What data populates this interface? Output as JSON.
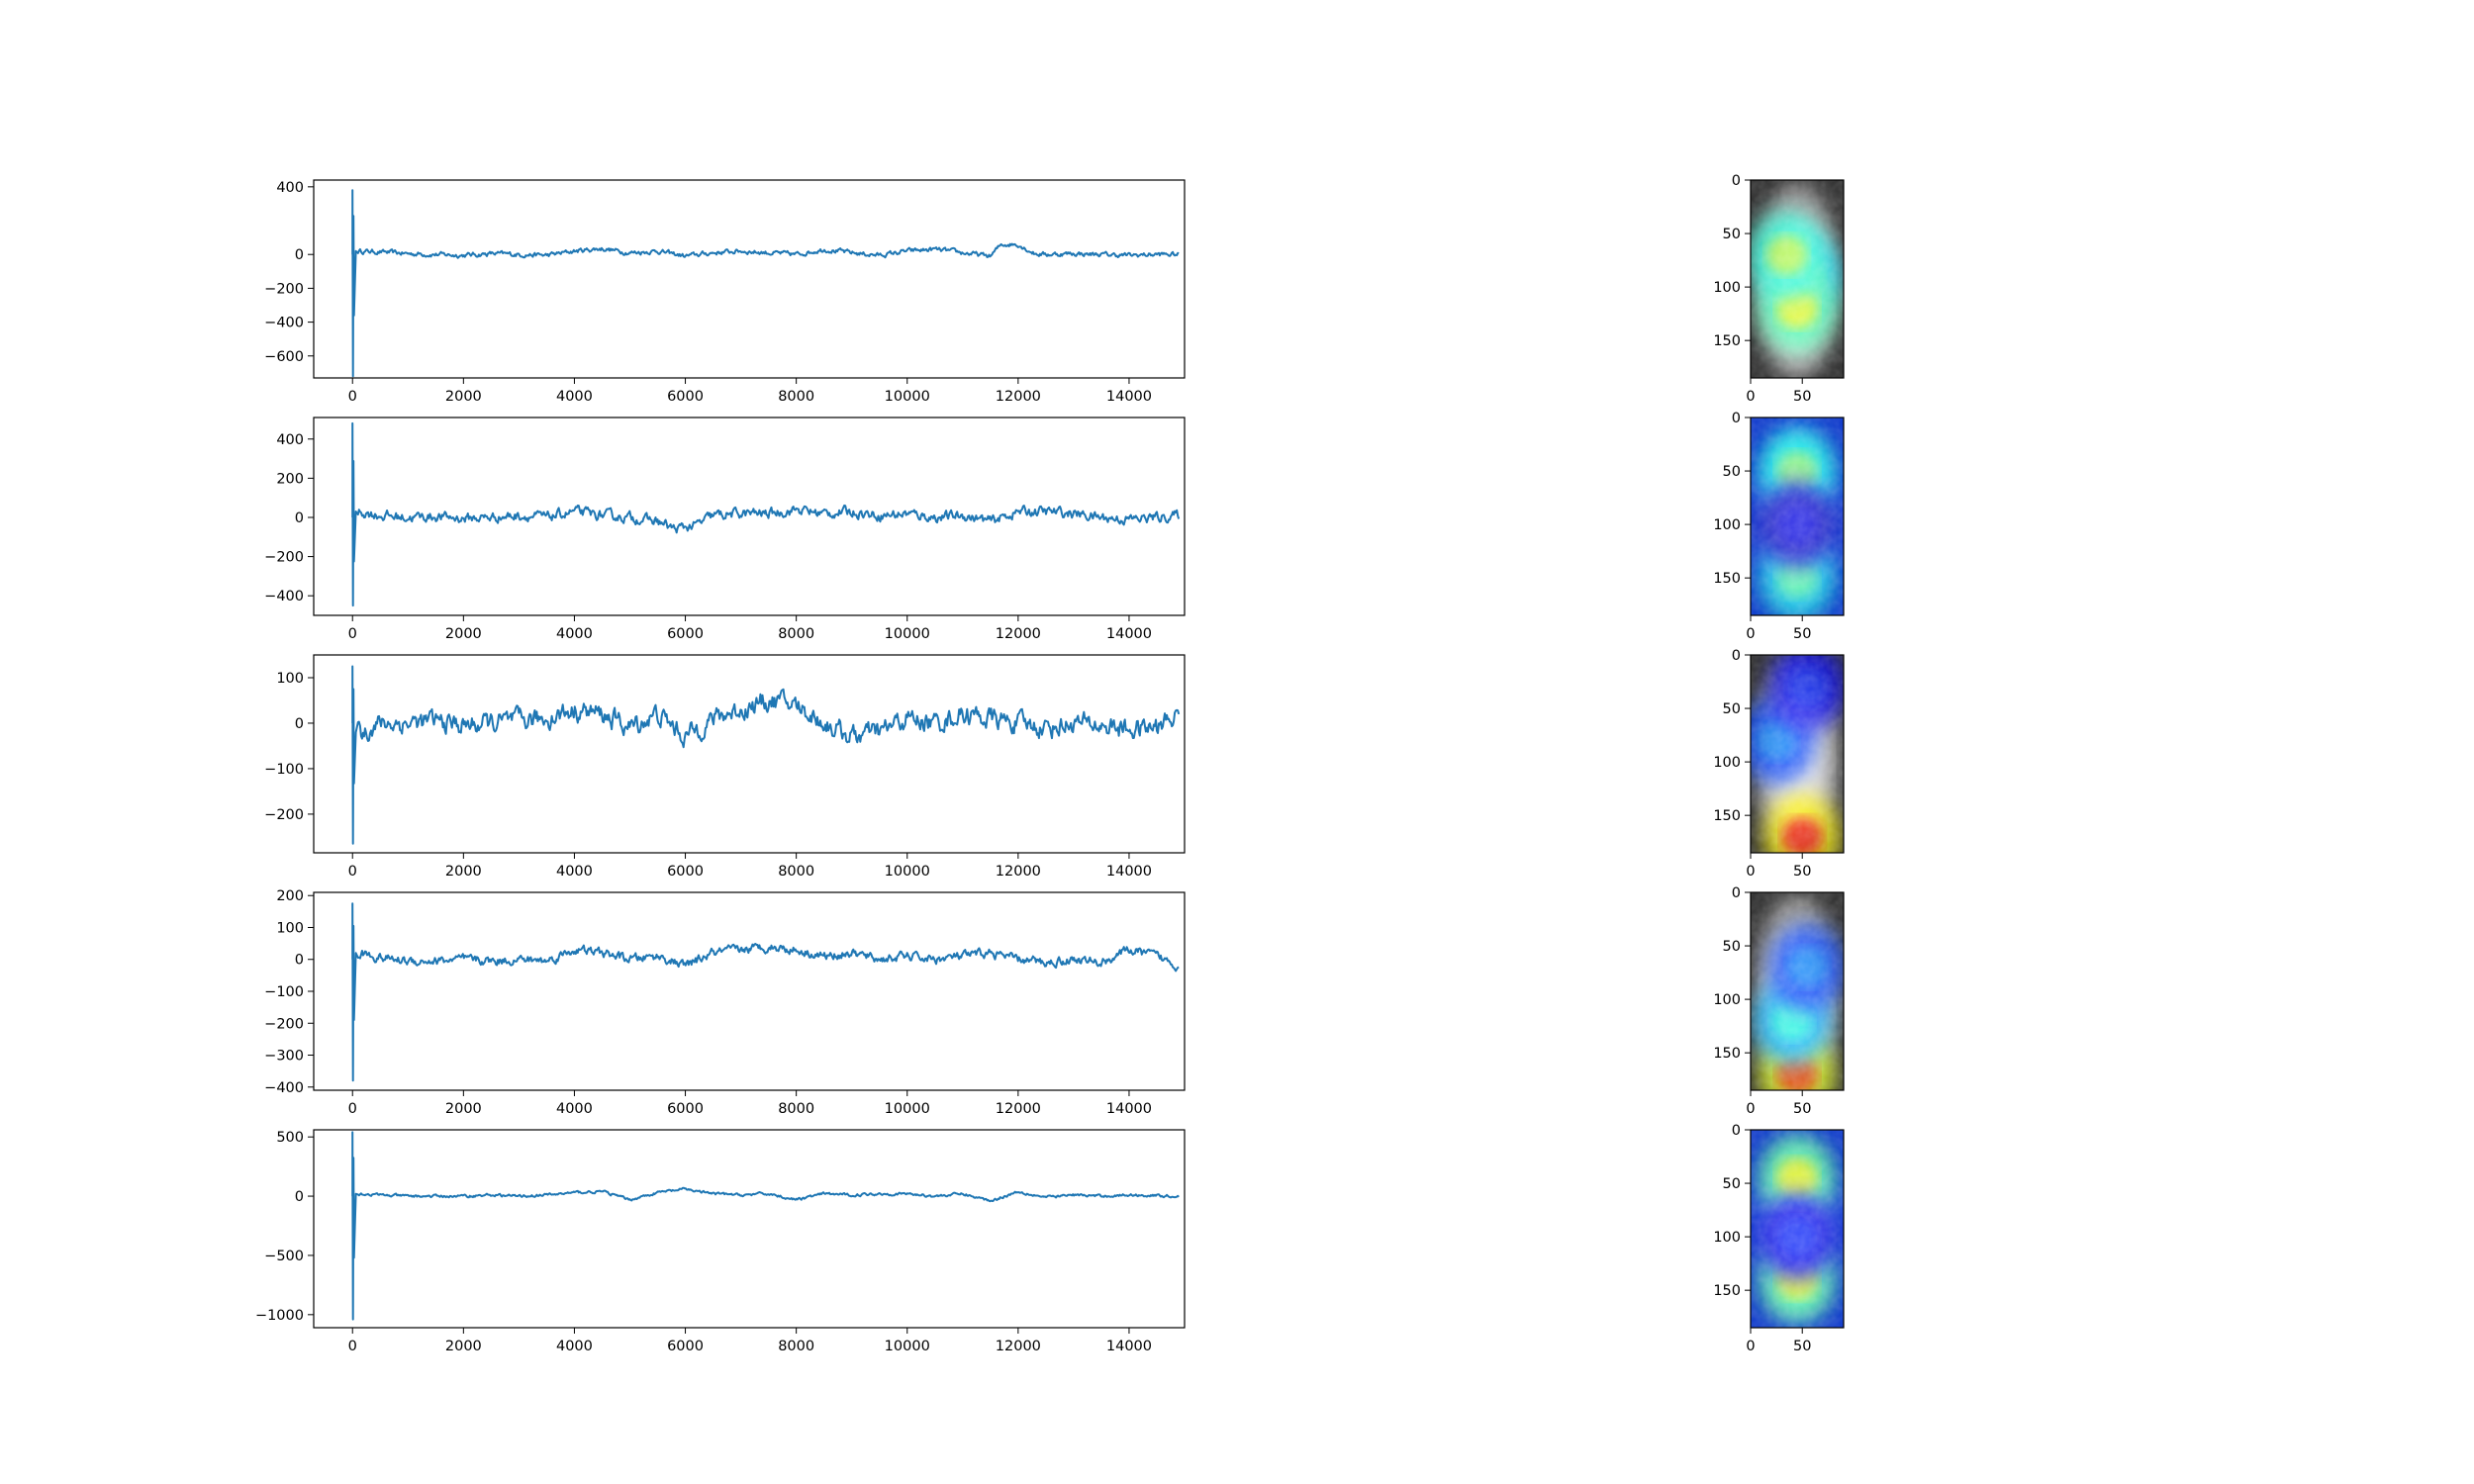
{
  "chart_data": [
    {
      "type": "line",
      "title": "",
      "xlabel": "",
      "ylabel": "",
      "xlim": [
        -700,
        15000
      ],
      "ylim": [
        -730,
        440
      ],
      "xticks": [
        0,
        2000,
        4000,
        6000,
        8000,
        10000,
        12000,
        14000
      ],
      "yticks": [
        400,
        200,
        0,
        -200,
        -400,
        -600
      ],
      "yticklabels": [
        "400",
        "0",
        "−200",
        "−400",
        "−600"
      ],
      "ytick_values": [
        400,
        0,
        -200,
        -400,
        -600
      ],
      "series": [
        {
          "color": "#1f77b4",
          "spike": {
            "x": 0,
            "min": -720,
            "max": 380
          },
          "noise_amplitude": 22,
          "x": [
            0,
            120,
            500,
            1000,
            1500,
            2000,
            2500,
            3000,
            3500,
            4000,
            4500,
            5000,
            5500,
            6000,
            6500,
            7000,
            7500,
            8000,
            8500,
            9000,
            9500,
            10000,
            10500,
            11000,
            11500,
            11700,
            12000,
            12300,
            12500,
            13000,
            13500,
            14000,
            14500,
            14900
          ],
          "y": [
            0,
            20,
            15,
            5,
            0,
            -5,
            5,
            0,
            -5,
            20,
            35,
            10,
            20,
            -10,
            10,
            20,
            10,
            0,
            30,
            10,
            -5,
            20,
            30,
            10,
            -10,
            60,
            60,
            5,
            0,
            5,
            0,
            -5,
            0,
            0
          ]
        }
      ]
    },
    {
      "type": "line",
      "title": "",
      "xlabel": "",
      "ylabel": "",
      "xlim": [
        -700,
        15000
      ],
      "ylim": [
        -500,
        510
      ],
      "xticks": [
        0,
        2000,
        4000,
        6000,
        8000,
        10000,
        12000,
        14000
      ],
      "yticks": [
        400,
        200,
        0,
        -200,
        -400
      ],
      "yticklabels": [
        "400",
        "200",
        "0",
        "−200",
        "−400"
      ],
      "series": [
        {
          "color": "#1f77b4",
          "spike": {
            "x": 0,
            "min": -450,
            "max": 480
          },
          "noise_amplitude": 40,
          "x": [
            0,
            120,
            500,
            1000,
            1500,
            2000,
            2500,
            3000,
            3500,
            4000,
            4500,
            5000,
            5500,
            5800,
            6200,
            6500,
            7000,
            7500,
            8000,
            8500,
            9000,
            9500,
            10000,
            10500,
            11000,
            11500,
            12000,
            12500,
            13000,
            13500,
            14000,
            14500,
            14900
          ],
          "y": [
            0,
            30,
            10,
            0,
            5,
            -5,
            0,
            10,
            0,
            30,
            10,
            0,
            -20,
            -60,
            -40,
            10,
            20,
            20,
            40,
            20,
            30,
            10,
            20,
            0,
            10,
            -20,
            30,
            30,
            20,
            0,
            -10,
            0,
            10
          ]
        }
      ]
    },
    {
      "type": "line",
      "title": "",
      "xlabel": "",
      "ylabel": "",
      "xlim": [
        -700,
        15000
      ],
      "ylim": [
        -285,
        150
      ],
      "xticks": [
        0,
        2000,
        4000,
        6000,
        8000,
        10000,
        12000,
        14000
      ],
      "yticks": [
        100,
        0,
        -100,
        -200
      ],
      "yticklabels": [
        "100",
        "0",
        "−100",
        "−200"
      ],
      "series": [
        {
          "color": "#1f77b4",
          "spike": {
            "x": 0,
            "min": -265,
            "max": 125
          },
          "noise_amplitude": 35,
          "x": [
            0,
            150,
            500,
            1000,
            1500,
            2000,
            2500,
            3000,
            3500,
            4000,
            4500,
            5000,
            5500,
            6000,
            6500,
            7000,
            7500,
            8000,
            8500,
            9000,
            9500,
            10000,
            10500,
            11000,
            11500,
            12000,
            12500,
            13000,
            13500,
            14000,
            14500,
            14900
          ],
          "y": [
            0,
            -20,
            0,
            0,
            5,
            -5,
            0,
            5,
            10,
            30,
            20,
            -10,
            20,
            -30,
            10,
            30,
            50,
            40,
            0,
            -30,
            -20,
            10,
            0,
            20,
            10,
            0,
            -10,
            0,
            -5,
            -15,
            -10,
            20
          ]
        }
      ]
    },
    {
      "type": "line",
      "title": "",
      "xlabel": "",
      "ylabel": "",
      "xlim": [
        -700,
        15000
      ],
      "ylim": [
        -410,
        210
      ],
      "xticks": [
        0,
        2000,
        4000,
        6000,
        8000,
        10000,
        12000,
        14000
      ],
      "yticks": [
        200,
        100,
        0,
        -100,
        -200,
        -300,
        -400
      ],
      "yticklabels": [
        "200",
        "100",
        "0",
        "−100",
        "−200",
        "−300",
        "−400"
      ],
      "series": [
        {
          "color": "#1f77b4",
          "spike": {
            "x": 0,
            "min": -380,
            "max": 175
          },
          "noise_amplitude": 22,
          "x": [
            0,
            150,
            500,
            1000,
            1500,
            2000,
            2500,
            3000,
            3500,
            4000,
            4500,
            5000,
            5500,
            6000,
            6500,
            7000,
            7500,
            8000,
            8500,
            9000,
            9500,
            10000,
            10500,
            11000,
            11500,
            12000,
            12500,
            13000,
            13500,
            14000,
            14500,
            14900
          ],
          "y": [
            0,
            20,
            5,
            -5,
            -5,
            0,
            -5,
            0,
            -5,
            30,
            20,
            0,
            10,
            -20,
            20,
            30,
            40,
            30,
            10,
            20,
            0,
            10,
            0,
            10,
            20,
            0,
            -10,
            0,
            -10,
            30,
            10,
            -20
          ]
        }
      ]
    },
    {
      "type": "line",
      "title": "",
      "xlabel": "",
      "ylabel": "",
      "xlim": [
        -700,
        15000
      ],
      "ylim": [
        -1110,
        560
      ],
      "xticks": [
        0,
        2000,
        4000,
        6000,
        8000,
        10000,
        12000,
        14000
      ],
      "yticks": [
        500,
        0,
        -500,
        -1000
      ],
      "yticklabels": [
        "500",
        "0",
        "−500",
        "−1000"
      ],
      "series": [
        {
          "color": "#1f77b4",
          "spike": {
            "x": 0,
            "min": -1040,
            "max": 540
          },
          "noise_amplitude": 18,
          "x": [
            0,
            150,
            500,
            1000,
            1500,
            2000,
            2500,
            3000,
            3500,
            4000,
            4500,
            5000,
            5500,
            6000,
            6500,
            7000,
            7500,
            8000,
            8500,
            9000,
            9500,
            10000,
            10500,
            11000,
            11500,
            12000,
            12500,
            13000,
            13500,
            14000,
            14500,
            14900
          ],
          "y": [
            0,
            20,
            10,
            0,
            0,
            0,
            10,
            0,
            10,
            30,
            40,
            -30,
            30,
            60,
            20,
            10,
            20,
            -30,
            20,
            10,
            20,
            20,
            0,
            20,
            -40,
            40,
            -10,
            10,
            0,
            10,
            5,
            0
          ]
        }
      ]
    },
    {
      "type": "heatmap",
      "title": "",
      "xlim": [
        0,
        90
      ],
      "ylim": [
        185,
        0
      ],
      "xticks": [
        0,
        50
      ],
      "yticks": [
        0,
        50,
        100,
        150
      ],
      "overlay": "grayscale image with jet-colormap activation",
      "hot_spots": [
        {
          "x": 50,
          "y": 90,
          "v": 0.45
        },
        {
          "x": 45,
          "y": 120,
          "v": 0.6
        },
        {
          "x": 35,
          "y": 70,
          "v": 0.55
        }
      ]
    },
    {
      "type": "heatmap",
      "title": "",
      "xlim": [
        0,
        90
      ],
      "ylim": [
        185,
        0
      ],
      "xticks": [
        0,
        50
      ],
      "yticks": [
        0,
        50,
        100,
        150
      ],
      "overlay": "grayscale image with jet-colormap activation",
      "hot_spots": [
        {
          "x": 45,
          "y": 50,
          "v": 0.5
        },
        {
          "x": 45,
          "y": 150,
          "v": 0.45
        },
        {
          "x": 45,
          "y": 100,
          "v": 0.1
        }
      ]
    },
    {
      "type": "heatmap",
      "title": "",
      "xlim": [
        0,
        90
      ],
      "ylim": [
        185,
        0
      ],
      "xticks": [
        0,
        50
      ],
      "yticks": [
        0,
        50,
        100,
        150
      ],
      "overlay": "grayscale image with jet-colormap activation",
      "hot_spots": [
        {
          "x": 50,
          "y": 170,
          "v": 0.85
        },
        {
          "x": 25,
          "y": 80,
          "v": 0.25
        },
        {
          "x": 55,
          "y": 30,
          "v": 0.15
        }
      ]
    },
    {
      "type": "heatmap",
      "title": "",
      "xlim": [
        0,
        90
      ],
      "ylim": [
        185,
        0
      ],
      "xticks": [
        0,
        50
      ],
      "yticks": [
        0,
        50,
        100,
        150
      ],
      "overlay": "grayscale image with jet-colormap activation",
      "hot_spots": [
        {
          "x": 45,
          "y": 170,
          "v": 0.8
        },
        {
          "x": 40,
          "y": 120,
          "v": 0.4
        },
        {
          "x": 55,
          "y": 70,
          "v": 0.25
        }
      ]
    },
    {
      "type": "heatmap",
      "title": "",
      "xlim": [
        0,
        90
      ],
      "ylim": [
        185,
        0
      ],
      "xticks": [
        0,
        50
      ],
      "yticks": [
        0,
        50,
        100,
        150
      ],
      "overlay": "grayscale image with jet-colormap activation",
      "hot_spots": [
        {
          "x": 45,
          "y": 45,
          "v": 0.6
        },
        {
          "x": 45,
          "y": 140,
          "v": 0.6
        },
        {
          "x": 45,
          "y": 100,
          "v": 0.15
        }
      ]
    }
  ]
}
